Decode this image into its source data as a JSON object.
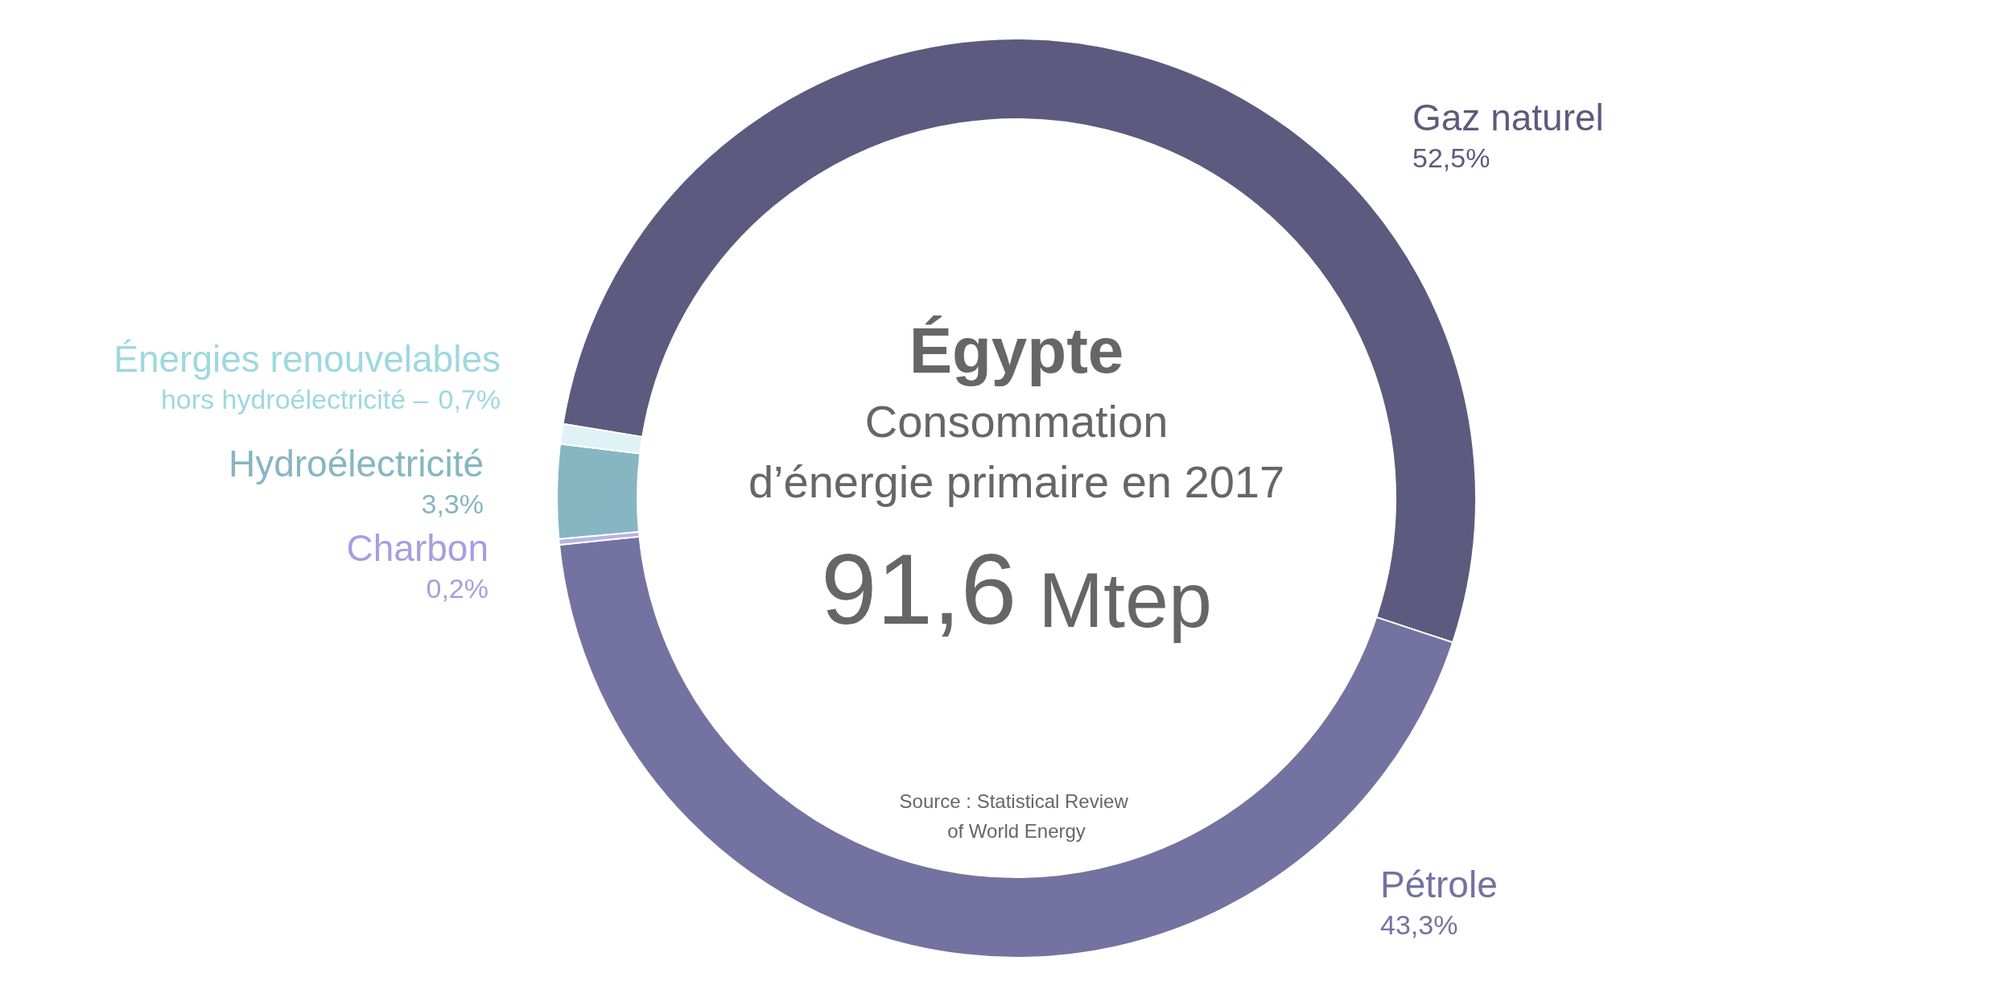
{
  "chart_data": {
    "type": "donut",
    "title": "Égypte",
    "subtitle": "Consommation\nd’énergie primaire en 2017",
    "annotations": [
      "91,6 Mtep",
      "Source : Statistical Review of World Energy",
      {
        "text": "hors hydroélectricité –",
        "x": "Énergies renouvelables"
      }
    ],
    "categories": [
      "Gaz naturel",
      "Pétrole",
      "Charbon",
      "Hydroélectricité",
      "Énergies renouvelables"
    ],
    "values": [
      52.5,
      43.3,
      0.2,
      3.3,
      0.7
    ],
    "colors": [
      "#5c5a7e",
      "#7472a0",
      "#b8b3e6",
      "#86b6c2",
      "#dff2f5"
    ],
    "value_labels": [
      "52,5%",
      "43,3%",
      "0,2%",
      "3,3%",
      "0,7%"
    ]
  }
}
